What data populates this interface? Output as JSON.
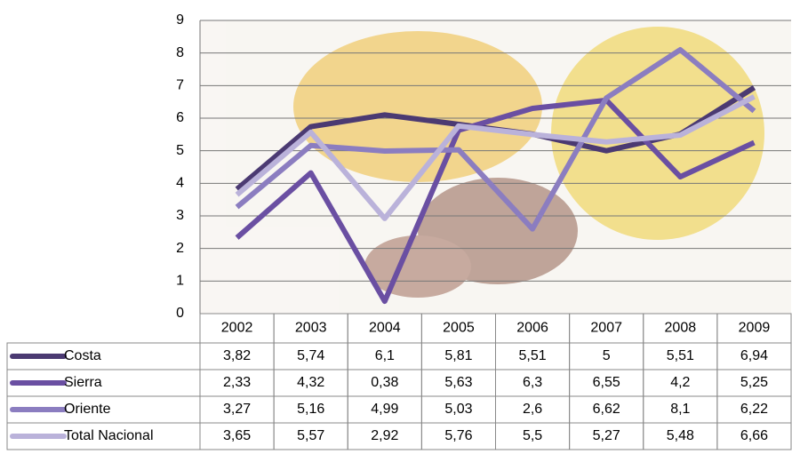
{
  "chart_data": {
    "type": "line",
    "categories": [
      "2002",
      "2003",
      "2004",
      "2005",
      "2006",
      "2007",
      "2008",
      "2009"
    ],
    "series": [
      {
        "name": "Costa",
        "color": "#4b3a72",
        "values": [
          3.82,
          5.74,
          6.1,
          5.81,
          5.51,
          5,
          5.51,
          6.94
        ],
        "value_labels": [
          "3,82",
          "5,74",
          "6,1",
          "5,81",
          "5,51",
          "5",
          "5,51",
          "6,94"
        ]
      },
      {
        "name": "Sierra",
        "color": "#6a4fa2",
        "values": [
          2.33,
          4.32,
          0.38,
          5.63,
          6.3,
          6.55,
          4.2,
          5.25
        ],
        "value_labels": [
          "2,33",
          "4,32",
          "0,38",
          "5,63",
          "6,3",
          "6,55",
          "4,2",
          "5,25"
        ]
      },
      {
        "name": "Oriente",
        "color": "#8b7dc0",
        "values": [
          3.27,
          5.16,
          4.99,
          5.03,
          2.6,
          6.62,
          8.1,
          6.22
        ],
        "value_labels": [
          "3,27",
          "5,16",
          "4,99",
          "5,03",
          "2,6",
          "6,62",
          "8,1",
          "6,22"
        ]
      },
      {
        "name": "Total Nacional",
        "color": "#bab2da",
        "values": [
          3.65,
          5.57,
          2.92,
          5.76,
          5.5,
          5.27,
          5.48,
          6.66
        ],
        "value_labels": [
          "3,65",
          "5,57",
          "2,92",
          "5,76",
          "5,5",
          "5,27",
          "5,48",
          "6,66"
        ]
      }
    ],
    "ylim": [
      0,
      9
    ],
    "yticks": [
      0,
      1,
      2,
      3,
      4,
      5,
      6,
      7,
      8,
      9
    ],
    "grid": true
  }
}
